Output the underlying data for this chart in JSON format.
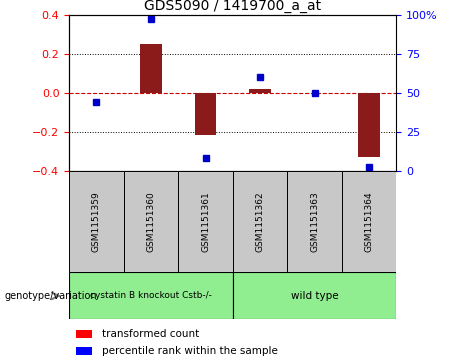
{
  "title": "GDS5090 / 1419700_a_at",
  "samples": [
    "GSM1151359",
    "GSM1151360",
    "GSM1151361",
    "GSM1151362",
    "GSM1151363",
    "GSM1151364"
  ],
  "transformed_count": [
    0.0,
    0.25,
    -0.22,
    0.02,
    0.0,
    -0.33
  ],
  "percentile_rank": [
    44,
    97,
    8,
    60,
    50,
    2
  ],
  "group1_label": "cystatin B knockout Cstb-/-",
  "group2_label": "wild type",
  "group_color": "#90EE90",
  "sample_box_color": "#C8C8C8",
  "ylim_left": [
    -0.4,
    0.4
  ],
  "ylim_right": [
    0,
    100
  ],
  "yticks_left": [
    -0.4,
    -0.2,
    0.0,
    0.2,
    0.4
  ],
  "yticks_right": [
    0,
    25,
    50,
    75,
    100
  ],
  "bar_color": "#8B1A1A",
  "dot_color": "#0000CD",
  "hline_color": "#CC0000",
  "grid_color": "#000000",
  "legend_red_label": "transformed count",
  "legend_blue_label": "percentile rank within the sample",
  "genotype_label": "genotype/variation"
}
